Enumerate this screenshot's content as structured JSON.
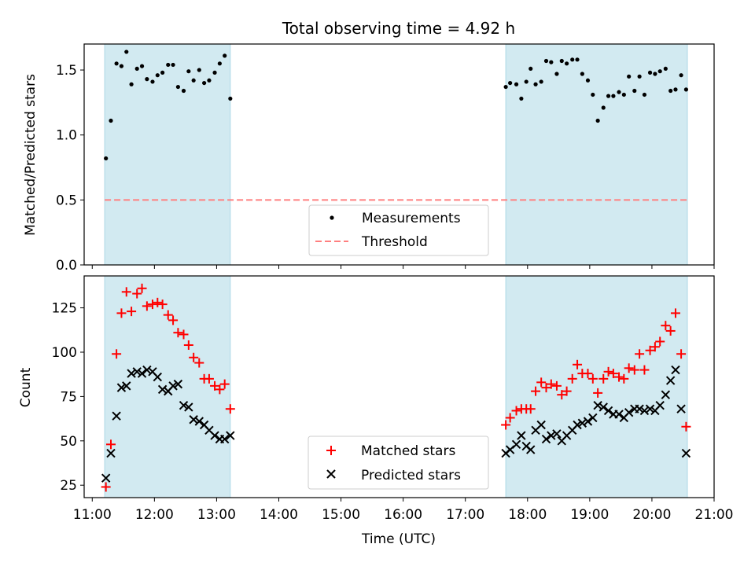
{
  "title": "Total observing time = 4.92 h",
  "colors": {
    "band": "#add8e6",
    "measurement": "#000000",
    "threshold": "#ff7f7f",
    "matched": "#ff0000",
    "predicted": "#000000"
  },
  "chart_data": [
    {
      "type": "scatter",
      "ylabel": "Matched/Predicted stars",
      "xlim": [
        10.87,
        21.0
      ],
      "ylim": [
        0,
        1.7
      ],
      "yticks": [
        0.0,
        0.5,
        1.0,
        1.5
      ],
      "ytick_labels": [
        "0.0",
        "0.5",
        "1.0",
        "1.5"
      ],
      "shaded_intervals": [
        [
          11.2,
          13.22
        ],
        [
          17.65,
          20.57
        ]
      ],
      "threshold": {
        "name": "Threshold",
        "value": 0.5,
        "x_range": [
          11.2,
          20.57
        ]
      },
      "legend": {
        "position": "lower center",
        "entries": [
          "Measurements",
          "Threshold"
        ]
      },
      "series": [
        {
          "name": "Measurements",
          "x": [
            11.22,
            11.3,
            11.39,
            11.47,
            11.55,
            11.63,
            11.72,
            11.8,
            11.88,
            11.97,
            12.05,
            12.13,
            12.22,
            12.3,
            12.38,
            12.47,
            12.55,
            12.63,
            12.72,
            12.8,
            12.88,
            12.97,
            13.05,
            13.13,
            13.22,
            17.65,
            17.72,
            17.82,
            17.9,
            17.98,
            18.05,
            18.13,
            18.22,
            18.3,
            18.38,
            18.47,
            18.55,
            18.63,
            18.72,
            18.8,
            18.88,
            18.97,
            19.05,
            19.13,
            19.22,
            19.3,
            19.38,
            19.47,
            19.55,
            19.63,
            19.72,
            19.8,
            19.88,
            19.97,
            20.05,
            20.13,
            20.22,
            20.3,
            20.38,
            20.47,
            20.55
          ],
          "y": [
            0.82,
            1.11,
            1.55,
            1.53,
            1.64,
            1.39,
            1.51,
            1.53,
            1.43,
            1.41,
            1.46,
            1.48,
            1.54,
            1.54,
            1.37,
            1.34,
            1.49,
            1.42,
            1.5,
            1.4,
            1.42,
            1.48,
            1.55,
            1.61,
            1.28,
            1.37,
            1.4,
            1.39,
            1.28,
            1.41,
            1.51,
            1.39,
            1.41,
            1.57,
            1.56,
            1.47,
            1.57,
            1.55,
            1.58,
            1.58,
            1.47,
            1.42,
            1.31,
            1.11,
            1.21,
            1.3,
            1.3,
            1.33,
            1.31,
            1.45,
            1.34,
            1.45,
            1.31,
            1.48,
            1.47,
            1.49,
            1.51,
            1.34,
            1.35,
            1.46,
            1.35
          ]
        }
      ]
    },
    {
      "type": "scatter",
      "ylabel": "Count",
      "xlabel": "Time (UTC)",
      "xlim": [
        10.87,
        21.0
      ],
      "ylim": [
        18,
        143
      ],
      "xticks": [
        11,
        12,
        13,
        14,
        15,
        16,
        17,
        18,
        19,
        20,
        21
      ],
      "xtick_labels": [
        "11:00",
        "12:00",
        "13:00",
        "14:00",
        "15:00",
        "16:00",
        "17:00",
        "18:00",
        "19:00",
        "20:00",
        "21:00"
      ],
      "yticks": [
        25,
        50,
        75,
        100,
        125
      ],
      "ytick_labels": [
        "25",
        "50",
        "75",
        "100",
        "125"
      ],
      "shaded_intervals": [
        [
          11.2,
          13.22
        ],
        [
          17.65,
          20.57
        ]
      ],
      "legend": {
        "position": "lower center",
        "entries": [
          "Matched stars",
          "Predicted stars"
        ]
      },
      "series": [
        {
          "name": "Matched stars",
          "x": [
            11.22,
            11.3,
            11.39,
            11.47,
            11.55,
            11.63,
            11.72,
            11.8,
            11.88,
            11.97,
            12.05,
            12.13,
            12.22,
            12.3,
            12.38,
            12.47,
            12.55,
            12.63,
            12.72,
            12.8,
            12.88,
            12.97,
            13.05,
            13.13,
            13.22,
            17.65,
            17.72,
            17.82,
            17.9,
            17.98,
            18.05,
            18.13,
            18.22,
            18.3,
            18.38,
            18.47,
            18.55,
            18.63,
            18.72,
            18.8,
            18.88,
            18.97,
            19.05,
            19.13,
            19.22,
            19.3,
            19.38,
            19.47,
            19.55,
            19.63,
            19.72,
            19.8,
            19.88,
            19.97,
            20.05,
            20.13,
            20.22,
            20.3,
            20.38,
            20.47,
            20.55
          ],
          "y": [
            24,
            48,
            99,
            122,
            134,
            123,
            133,
            136,
            126,
            127,
            128,
            127,
            121,
            118,
            111,
            110,
            104,
            97,
            94,
            85,
            85,
            81,
            79,
            82,
            68,
            59,
            63,
            67,
            68,
            68,
            68,
            78,
            83,
            80,
            82,
            81,
            76,
            78,
            85,
            93,
            88,
            88,
            85,
            77,
            85,
            89,
            88,
            86,
            85,
            91,
            90,
            99,
            90,
            101,
            103,
            106,
            115,
            112,
            122,
            99,
            58
          ]
        },
        {
          "name": "Predicted stars",
          "x": [
            11.22,
            11.3,
            11.39,
            11.47,
            11.55,
            11.63,
            11.72,
            11.8,
            11.88,
            11.97,
            12.05,
            12.13,
            12.22,
            12.3,
            12.38,
            12.47,
            12.55,
            12.63,
            12.72,
            12.8,
            12.88,
            12.97,
            13.05,
            13.13,
            13.22,
            17.65,
            17.72,
            17.82,
            17.9,
            17.98,
            18.05,
            18.13,
            18.22,
            18.3,
            18.38,
            18.47,
            18.55,
            18.63,
            18.72,
            18.8,
            18.88,
            18.97,
            19.05,
            19.13,
            19.22,
            19.3,
            19.38,
            19.47,
            19.55,
            19.63,
            19.72,
            19.8,
            19.88,
            19.97,
            20.05,
            20.13,
            20.22,
            20.3,
            20.38,
            20.47,
            20.55
          ],
          "y": [
            29,
            43,
            64,
            80,
            81,
            88,
            89,
            88,
            90,
            89,
            86,
            79,
            78,
            81,
            82,
            70,
            69,
            62,
            61,
            59,
            56,
            53,
            51,
            51,
            53,
            43,
            45,
            48,
            53,
            47,
            45,
            56,
            59,
            51,
            53,
            54,
            50,
            53,
            56,
            59,
            60,
            61,
            63,
            70,
            69,
            67,
            65,
            65,
            63,
            66,
            68,
            68,
            67,
            68,
            67,
            70,
            76,
            84,
            90,
            68,
            43
          ]
        }
      ]
    }
  ]
}
